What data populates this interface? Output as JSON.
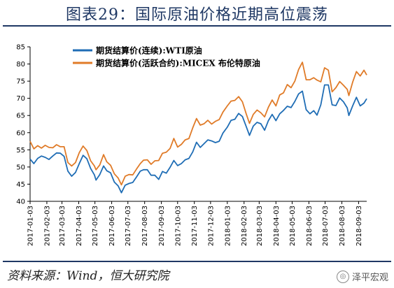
{
  "title": "图表29：国际原油价格近期高位震荡",
  "source": "资料来源：Wind，恒大研究院",
  "watermark": "泽平宏观",
  "colors": {
    "wti": "#1f6db5",
    "brent": "#e07b28",
    "frame": "#1f3864"
  },
  "chart_data": {
    "type": "line",
    "title": "图表29：国际原油价格近期高位震荡",
    "xlabel": "",
    "ylabel": "",
    "ylim": [
      40,
      85
    ],
    "xlim": [
      "2017-01-03",
      "2018-09-18"
    ],
    "yticks": [
      40,
      45,
      50,
      55,
      60,
      65,
      70,
      75,
      80,
      85
    ],
    "xticks": [
      "2017-01-03",
      "2017-02-03",
      "2017-03-03",
      "2017-04-03",
      "2017-05-03",
      "2017-06-03",
      "2017-07-03",
      "2017-08-03",
      "2017-09-03",
      "2017-10-03",
      "2017-11-03",
      "2017-12-03",
      "2018-01-03",
      "2018-02-03",
      "2018-03-03",
      "2018-04-03",
      "2018-05-03",
      "2018-06-03",
      "2018-07-03",
      "2018-08-03",
      "2018-09-03"
    ],
    "grid": false,
    "legend": "top-left",
    "series": [
      {
        "name": "期货结算价(连续):WTI原油",
        "color": "#1f6db5",
        "points": [
          [
            "2017-01-03",
            52.3
          ],
          [
            "2017-01-10",
            51.0
          ],
          [
            "2017-01-17",
            52.5
          ],
          [
            "2017-01-24",
            53.2
          ],
          [
            "2017-01-31",
            52.8
          ],
          [
            "2017-02-07",
            52.2
          ],
          [
            "2017-02-14",
            53.2
          ],
          [
            "2017-02-21",
            54.1
          ],
          [
            "2017-02-28",
            54.0
          ],
          [
            "2017-03-07",
            53.1
          ],
          [
            "2017-03-14",
            48.8
          ],
          [
            "2017-03-21",
            47.3
          ],
          [
            "2017-03-28",
            48.4
          ],
          [
            "2017-04-04",
            51.0
          ],
          [
            "2017-04-11",
            53.4
          ],
          [
            "2017-04-18",
            52.4
          ],
          [
            "2017-04-25",
            49.6
          ],
          [
            "2017-05-02",
            47.7
          ],
          [
            "2017-05-05",
            46.2
          ],
          [
            "2017-05-12",
            47.8
          ],
          [
            "2017-05-19",
            50.3
          ],
          [
            "2017-05-25",
            48.9
          ],
          [
            "2017-06-01",
            48.3
          ],
          [
            "2017-06-08",
            45.6
          ],
          [
            "2017-06-15",
            44.5
          ],
          [
            "2017-06-21",
            42.5
          ],
          [
            "2017-06-28",
            44.7
          ],
          [
            "2017-07-05",
            45.2
          ],
          [
            "2017-07-12",
            45.5
          ],
          [
            "2017-07-19",
            47.1
          ],
          [
            "2017-07-26",
            48.8
          ],
          [
            "2017-08-01",
            49.2
          ],
          [
            "2017-08-08",
            49.2
          ],
          [
            "2017-08-15",
            47.6
          ],
          [
            "2017-08-22",
            47.6
          ],
          [
            "2017-08-29",
            46.4
          ],
          [
            "2017-09-05",
            48.7
          ],
          [
            "2017-09-12",
            48.2
          ],
          [
            "2017-09-19",
            49.9
          ],
          [
            "2017-09-26",
            51.9
          ],
          [
            "2017-10-03",
            50.4
          ],
          [
            "2017-10-10",
            51.0
          ],
          [
            "2017-10-17",
            52.1
          ],
          [
            "2017-10-24",
            52.5
          ],
          [
            "2017-10-31",
            54.4
          ],
          [
            "2017-11-07",
            57.2
          ],
          [
            "2017-11-14",
            55.7
          ],
          [
            "2017-11-21",
            56.8
          ],
          [
            "2017-11-28",
            57.9
          ],
          [
            "2017-12-05",
            57.6
          ],
          [
            "2017-12-12",
            57.1
          ],
          [
            "2017-12-19",
            57.5
          ],
          [
            "2017-12-26",
            59.9
          ],
          [
            "2018-01-03",
            61.6
          ],
          [
            "2018-01-10",
            63.6
          ],
          [
            "2018-01-17",
            63.9
          ],
          [
            "2018-01-24",
            65.6
          ],
          [
            "2018-01-31",
            64.7
          ],
          [
            "2018-02-07",
            61.8
          ],
          [
            "2018-02-13",
            59.2
          ],
          [
            "2018-02-20",
            61.9
          ],
          [
            "2018-02-27",
            63.0
          ],
          [
            "2018-03-06",
            62.6
          ],
          [
            "2018-03-13",
            60.7
          ],
          [
            "2018-03-20",
            63.5
          ],
          [
            "2018-03-27",
            65.3
          ],
          [
            "2018-04-03",
            63.5
          ],
          [
            "2018-04-10",
            65.5
          ],
          [
            "2018-04-17",
            66.5
          ],
          [
            "2018-04-24",
            67.7
          ],
          [
            "2018-05-01",
            67.3
          ],
          [
            "2018-05-08",
            69.1
          ],
          [
            "2018-05-15",
            71.3
          ],
          [
            "2018-05-22",
            72.1
          ],
          [
            "2018-05-29",
            66.7
          ],
          [
            "2018-06-05",
            65.5
          ],
          [
            "2018-06-12",
            66.4
          ],
          [
            "2018-06-18",
            65.1
          ],
          [
            "2018-06-25",
            68.1
          ],
          [
            "2018-07-02",
            73.9
          ],
          [
            "2018-07-09",
            73.9
          ],
          [
            "2018-07-16",
            68.1
          ],
          [
            "2018-07-23",
            67.9
          ],
          [
            "2018-07-30",
            70.1
          ],
          [
            "2018-08-06",
            69.0
          ],
          [
            "2018-08-13",
            67.2
          ],
          [
            "2018-08-16",
            65.0
          ],
          [
            "2018-08-23",
            67.8
          ],
          [
            "2018-08-30",
            70.3
          ],
          [
            "2018-09-06",
            67.8
          ],
          [
            "2018-09-13",
            68.6
          ],
          [
            "2018-09-18",
            69.9
          ]
        ]
      },
      {
        "name": "期货结算价(活跃合约):MICEX 布伦特原油",
        "color": "#e07b28",
        "points": [
          [
            "2017-01-03",
            57.5
          ],
          [
            "2017-01-10",
            55.3
          ],
          [
            "2017-01-17",
            56.2
          ],
          [
            "2017-01-24",
            55.5
          ],
          [
            "2017-01-31",
            56.3
          ],
          [
            "2017-02-07",
            55.7
          ],
          [
            "2017-02-14",
            55.6
          ],
          [
            "2017-02-21",
            56.5
          ],
          [
            "2017-02-28",
            55.9
          ],
          [
            "2017-03-07",
            55.9
          ],
          [
            "2017-03-14",
            51.3
          ],
          [
            "2017-03-21",
            50.3
          ],
          [
            "2017-03-28",
            51.3
          ],
          [
            "2017-04-04",
            54.2
          ],
          [
            "2017-04-11",
            56.1
          ],
          [
            "2017-04-18",
            54.8
          ],
          [
            "2017-04-25",
            51.8
          ],
          [
            "2017-05-02",
            50.3
          ],
          [
            "2017-05-05",
            49.2
          ],
          [
            "2017-05-12",
            50.6
          ],
          [
            "2017-05-19",
            53.6
          ],
          [
            "2017-05-25",
            51.5
          ],
          [
            "2017-06-01",
            50.5
          ],
          [
            "2017-06-08",
            48.0
          ],
          [
            "2017-06-15",
            46.8
          ],
          [
            "2017-06-21",
            44.8
          ],
          [
            "2017-06-28",
            47.3
          ],
          [
            "2017-07-05",
            47.8
          ],
          [
            "2017-07-12",
            47.7
          ],
          [
            "2017-07-19",
            49.4
          ],
          [
            "2017-07-26",
            51.0
          ],
          [
            "2017-08-01",
            52.0
          ],
          [
            "2017-08-08",
            52.1
          ],
          [
            "2017-08-15",
            50.8
          ],
          [
            "2017-08-22",
            51.8
          ],
          [
            "2017-08-29",
            51.9
          ],
          [
            "2017-09-05",
            54.0
          ],
          [
            "2017-09-12",
            54.3
          ],
          [
            "2017-09-19",
            55.4
          ],
          [
            "2017-09-26",
            58.3
          ],
          [
            "2017-10-03",
            55.8
          ],
          [
            "2017-10-10",
            56.6
          ],
          [
            "2017-10-17",
            57.9
          ],
          [
            "2017-10-24",
            58.3
          ],
          [
            "2017-10-31",
            61.4
          ],
          [
            "2017-11-07",
            64.1
          ],
          [
            "2017-11-14",
            62.2
          ],
          [
            "2017-11-21",
            62.6
          ],
          [
            "2017-11-28",
            63.6
          ],
          [
            "2017-12-05",
            62.5
          ],
          [
            "2017-12-12",
            63.3
          ],
          [
            "2017-12-19",
            63.8
          ],
          [
            "2017-12-26",
            66.0
          ],
          [
            "2018-01-03",
            67.8
          ],
          [
            "2018-01-10",
            69.2
          ],
          [
            "2018-01-17",
            69.4
          ],
          [
            "2018-01-24",
            70.5
          ],
          [
            "2018-01-31",
            69.0
          ],
          [
            "2018-02-07",
            65.5
          ],
          [
            "2018-02-13",
            62.7
          ],
          [
            "2018-02-20",
            65.3
          ],
          [
            "2018-02-27",
            66.6
          ],
          [
            "2018-03-06",
            65.8
          ],
          [
            "2018-03-13",
            64.6
          ],
          [
            "2018-03-20",
            67.4
          ],
          [
            "2018-03-27",
            69.5
          ],
          [
            "2018-04-03",
            67.8
          ],
          [
            "2018-04-10",
            71.0
          ],
          [
            "2018-04-17",
            71.6
          ],
          [
            "2018-04-24",
            74.0
          ],
          [
            "2018-05-01",
            73.1
          ],
          [
            "2018-05-08",
            75.0
          ],
          [
            "2018-05-15",
            78.4
          ],
          [
            "2018-05-22",
            80.5
          ],
          [
            "2018-05-29",
            75.4
          ],
          [
            "2018-06-05",
            75.4
          ],
          [
            "2018-06-12",
            76.0
          ],
          [
            "2018-06-18",
            75.3
          ],
          [
            "2018-06-25",
            74.8
          ],
          [
            "2018-07-02",
            78.9
          ],
          [
            "2018-07-09",
            78.2
          ],
          [
            "2018-07-16",
            71.9
          ],
          [
            "2018-07-23",
            73.1
          ],
          [
            "2018-07-30",
            74.9
          ],
          [
            "2018-08-06",
            73.8
          ],
          [
            "2018-08-13",
            72.6
          ],
          [
            "2018-08-16",
            70.8
          ],
          [
            "2018-08-23",
            74.7
          ],
          [
            "2018-08-30",
            77.8
          ],
          [
            "2018-09-06",
            76.5
          ],
          [
            "2018-09-13",
            78.2
          ],
          [
            "2018-09-18",
            76.8
          ]
        ]
      }
    ],
    "legend_entries": [
      "期货结算价(连续):WTI原油",
      "期货结算价(活跃合约):MICEX 布伦特原油"
    ]
  }
}
